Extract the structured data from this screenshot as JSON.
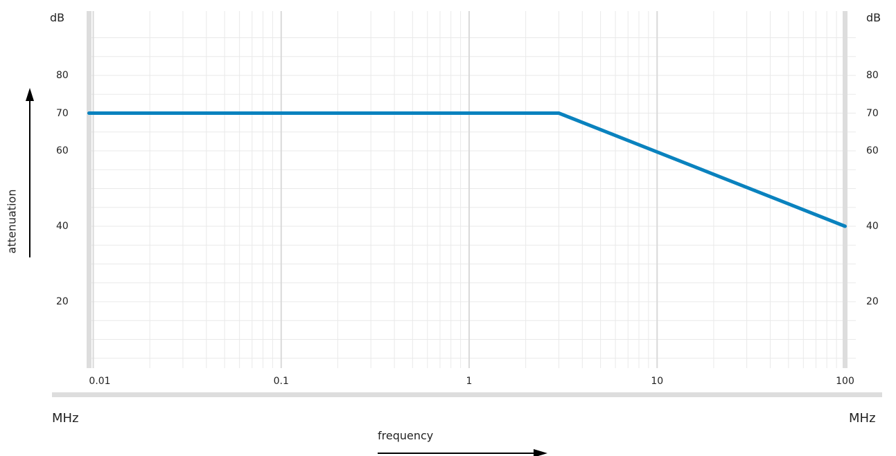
{
  "chart_data": {
    "type": "line",
    "xscale": "log",
    "xlim": [
      0.0095,
      100
    ],
    "ylim": [
      0,
      90
    ],
    "y_tick_values": [
      20,
      40,
      60,
      70,
      80
    ],
    "y_tick_labels": [
      "20",
      "40",
      "60",
      "70",
      "80"
    ],
    "x_tick_values": [
      0.01,
      0.1,
      1,
      10,
      100
    ],
    "x_tick_labels": [
      "0.01",
      "0.1",
      "1",
      "10",
      "100"
    ],
    "y_unit": "dB",
    "x_unit": "MHz",
    "xlabel": "frequency",
    "ylabel": "attenuation",
    "grid": true,
    "series": [
      {
        "x": [
          0.0095,
          3,
          100
        ],
        "y": [
          70,
          70,
          40
        ]
      }
    ],
    "colors": {
      "line": "#0a82be",
      "grid_minor": "#e9e9e9",
      "grid_major": "#d9d9d9",
      "axis_band": "#dddddd"
    }
  }
}
